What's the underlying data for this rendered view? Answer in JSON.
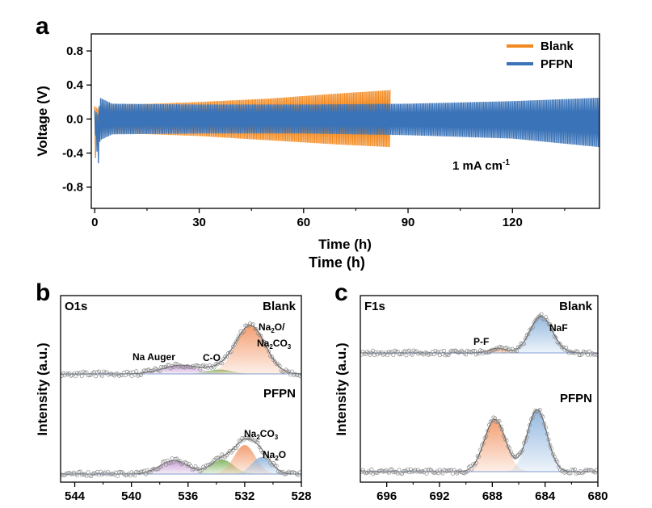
{
  "chart_data": [
    {
      "panel": "a",
      "type": "line",
      "xlabel": "Time (h)",
      "xlabel_extra": "Time (h)",
      "ylabel": "Voltage (V)",
      "xlim": [
        -1,
        145
      ],
      "ylim": [
        -1.05,
        1.0
      ],
      "xticks": [
        0,
        30,
        60,
        90,
        120
      ],
      "yticks": [
        0.8,
        0.4,
        0.0,
        -0.4,
        -0.8
      ],
      "ytick_labels": [
        "0.8",
        "0.4",
        "0.0",
        "-0.4",
        "-0.8"
      ],
      "annotation": "1 mA cm",
      "annotation_sup": "-1",
      "legend_position": "top-right",
      "series": [
        {
          "name": "Blank",
          "color": "#F28A21",
          "t_end": 85,
          "envelope_t": [
            0,
            1,
            2,
            10,
            30,
            50,
            70,
            85
          ],
          "envelope_upper": [
            0.15,
            0.12,
            0.17,
            0.17,
            0.2,
            0.24,
            0.3,
            0.34
          ],
          "envelope_lower": [
            -0.55,
            -0.12,
            -0.17,
            -0.17,
            -0.2,
            -0.25,
            -0.3,
            -0.33
          ]
        },
        {
          "name": "PFPN",
          "color": "#3A73B8",
          "t_end": 145,
          "envelope_t": [
            0,
            1,
            1.5,
            5,
            30,
            60,
            90,
            120,
            145
          ],
          "envelope_upper": [
            0.1,
            0.05,
            0.25,
            0.18,
            0.17,
            0.17,
            0.18,
            0.21,
            0.25
          ],
          "envelope_lower": [
            -0.1,
            -0.55,
            -0.25,
            -0.18,
            -0.17,
            -0.17,
            -0.19,
            -0.23,
            -0.33
          ]
        }
      ]
    },
    {
      "panel": "b",
      "title": "O1s",
      "type": "line",
      "xlabel": "",
      "ylabel": "Intensity (a.u.)",
      "xlim": [
        545,
        528
      ],
      "xticks": [
        544,
        540,
        536,
        532,
        528
      ],
      "curves": [
        {
          "name": "Blank",
          "label": "Blank",
          "components": [
            {
              "name": "Na Auger",
              "center": 536.5,
              "height": 0.18,
              "width": 1.3,
              "color": "#C79AD3"
            },
            {
              "name": "C-O",
              "center": 533.8,
              "height": 0.09,
              "width": 0.9,
              "color": "#7DB35B"
            },
            {
              "name": "Na2O/Na2CO3",
              "center": 531.6,
              "height": 1.0,
              "width": 1.05,
              "color": "#F29A6B"
            }
          ]
        },
        {
          "name": "PFPN",
          "label": "PFPN",
          "components": [
            {
              "name": "Na Auger",
              "center": 537.0,
              "height": 0.28,
              "width": 1.0,
              "color": "#C79AD3"
            },
            {
              "name": "C-O",
              "center": 533.6,
              "height": 0.3,
              "width": 0.8,
              "color": "#7DB35B"
            },
            {
              "name": "Na2CO3",
              "center": 532.0,
              "height": 0.6,
              "width": 0.75,
              "color": "#F29A6B"
            },
            {
              "name": "Na2O",
              "center": 530.8,
              "height": 0.35,
              "width": 0.7,
              "color": "#8FB5DE"
            }
          ]
        }
      ],
      "annotations": {
        "na_auger": "Na Auger",
        "co": "C-O",
        "blank_peak_1": "Na",
        "blank_peak_1_sub": "2",
        "blank_peak_1_tail": "O/",
        "blank_peak_2": "Na",
        "blank_peak_2_sub": "2",
        "blank_peak_2_tail": "CO",
        "blank_peak_2_sub2": "3",
        "pfpn_peak_1": "Na",
        "pfpn_peak_1_sub": "2",
        "pfpn_peak_1_tail": "CO",
        "pfpn_peak_1_sub2": "3",
        "pfpn_peak_2": "Na",
        "pfpn_peak_2_sub": "2",
        "pfpn_peak_2_tail": "O"
      }
    },
    {
      "panel": "c",
      "title": "F1s",
      "type": "line",
      "xlabel": "",
      "ylabel": "Intensity (a.u.)",
      "xlim": [
        698,
        680
      ],
      "xticks": [
        696,
        692,
        688,
        684,
        680
      ],
      "curves": [
        {
          "name": "Blank",
          "label": "Blank",
          "components": [
            {
              "name": "P-F",
              "center": 687.6,
              "height": 0.12,
              "width": 0.65,
              "color": "#F29A6B"
            },
            {
              "name": "NaF",
              "center": 684.3,
              "height": 0.95,
              "width": 0.85,
              "color": "#8FB5DE"
            }
          ]
        },
        {
          "name": "PFPN",
          "label": "PFPN",
          "components": [
            {
              "name": "P-F",
              "center": 687.8,
              "height": 1.35,
              "width": 0.8,
              "color": "#F29A6B"
            },
            {
              "name": "NaF",
              "center": 684.6,
              "height": 1.6,
              "width": 0.75,
              "color": "#8FB5DE"
            }
          ]
        }
      ],
      "annotations": {
        "pf": "P-F",
        "naf": "NaF"
      }
    }
  ],
  "labels": {
    "a": "a",
    "b": "b",
    "c": "c"
  }
}
